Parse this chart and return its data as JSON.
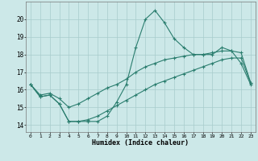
{
  "xlabel": "Humidex (Indice chaleur)",
  "x": [
    0,
    1,
    2,
    3,
    4,
    5,
    6,
    7,
    8,
    9,
    10,
    11,
    12,
    13,
    14,
    15,
    16,
    17,
    18,
    19,
    20,
    21,
    22,
    23
  ],
  "line_main": [
    16.3,
    15.6,
    15.7,
    15.2,
    14.2,
    14.2,
    14.2,
    14.2,
    14.5,
    15.3,
    16.3,
    18.4,
    20.0,
    20.5,
    19.8,
    18.9,
    18.4,
    18.0,
    18.0,
    18.0,
    18.4,
    18.2,
    17.5,
    16.3
  ],
  "line_upper": [
    16.3,
    15.7,
    15.8,
    15.5,
    15.0,
    15.2,
    15.5,
    15.8,
    16.1,
    16.3,
    16.6,
    17.0,
    17.3,
    17.5,
    17.7,
    17.8,
    17.9,
    18.0,
    18.0,
    18.1,
    18.2,
    18.2,
    18.1,
    16.4
  ],
  "line_lower": [
    16.3,
    15.6,
    15.7,
    15.2,
    14.2,
    14.2,
    14.3,
    14.5,
    14.8,
    15.1,
    15.4,
    15.7,
    16.0,
    16.3,
    16.5,
    16.7,
    16.9,
    17.1,
    17.3,
    17.5,
    17.7,
    17.8,
    17.8,
    16.4
  ],
  "line_color": "#2a7d6e",
  "bg_color": "#cce8e8",
  "grid_color": "#a8cccc",
  "ylim": [
    13.6,
    21.0
  ],
  "yticks": [
    14,
    15,
    16,
    17,
    18,
    19,
    20
  ],
  "xticks": [
    0,
    1,
    2,
    3,
    4,
    5,
    6,
    7,
    8,
    9,
    10,
    11,
    12,
    13,
    14,
    15,
    16,
    17,
    18,
    19,
    20,
    21,
    22,
    23
  ]
}
